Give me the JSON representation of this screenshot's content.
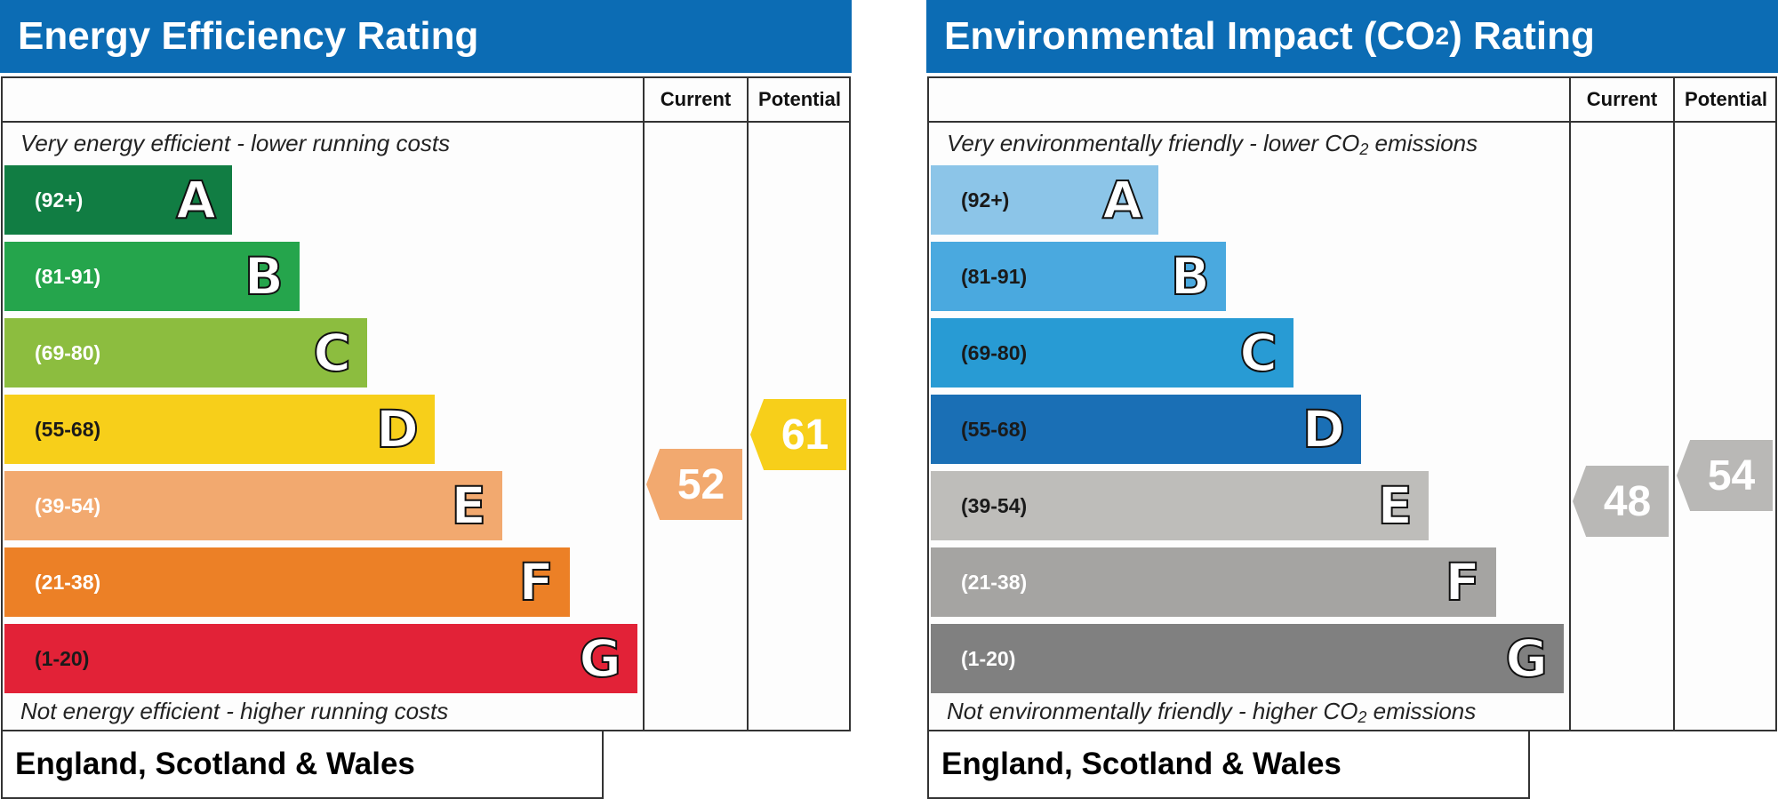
{
  "chart_data": [
    {
      "type": "bar",
      "title": "Energy Efficiency Rating",
      "columns": [
        "Current",
        "Potential"
      ],
      "top_note": "Very energy efficient - lower running costs",
      "bottom_note": "Not energy efficient - higher running costs",
      "categories": [
        "A",
        "B",
        "C",
        "D",
        "E",
        "F",
        "G"
      ],
      "ranges": [
        "(92+)",
        "(81-91)",
        "(69-80)",
        "(55-68)",
        "(39-54)",
        "(21-38)",
        "(1-20)"
      ],
      "colors": [
        "#117d43",
        "#25a54c",
        "#8cbd3f",
        "#f7cf1a",
        "#f2a96f",
        "#ec8026",
        "#e22237"
      ],
      "current": {
        "value": 52,
        "band": "E",
        "color": "#f2a96f"
      },
      "potential": {
        "value": 61,
        "band": "D",
        "color": "#f7cf1a"
      },
      "footer": "England, Scotland & Wales"
    },
    {
      "type": "bar",
      "title_main": "Environmental Impact (CO",
      "title_sub": "2",
      "title_end": ") Rating",
      "columns": [
        "Current",
        "Potential"
      ],
      "top_note_main": "Very environmentally friendly - lower CO",
      "top_note_sub": "2",
      "top_note_end": " emissions",
      "bottom_note_main": "Not environmentally friendly - higher CO",
      "bottom_note_sub": "2",
      "bottom_note_end": " emissions",
      "categories": [
        "A",
        "B",
        "C",
        "D",
        "E",
        "F",
        "G"
      ],
      "ranges": [
        "(92+)",
        "(81-91)",
        "(69-80)",
        "(55-68)",
        "(39-54)",
        "(21-38)",
        "(1-20)"
      ],
      "colors": [
        "#8cc5e8",
        "#4aa9df",
        "#289bd4",
        "#1a6fb5",
        "#bebdba",
        "#a5a4a2",
        "#808080"
      ],
      "current": {
        "value": 48,
        "band": "E",
        "color": "#b9b8b6"
      },
      "potential": {
        "value": 54,
        "band": "E",
        "color": "#b9b8b6"
      },
      "footer": "England, Scotland & Wales"
    }
  ]
}
